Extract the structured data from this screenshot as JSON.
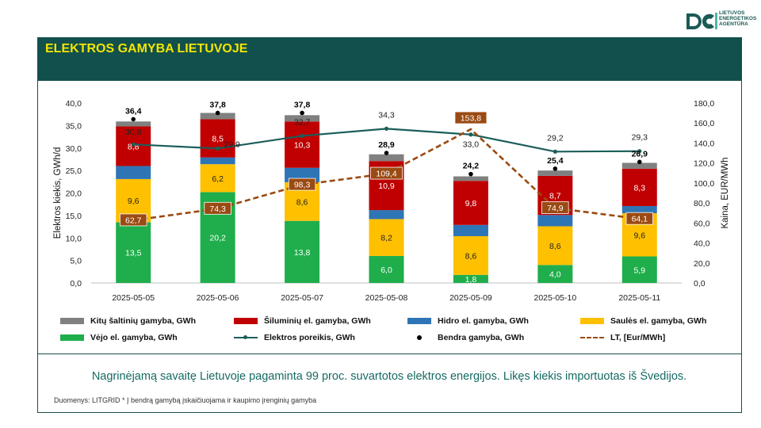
{
  "header": {
    "logo_text": "LIETUVOS\nENERGETIKOS\nAGENTŪRA",
    "title": "ELEKTROS GAMYBA LIETUVOJE"
  },
  "chart_data": {
    "type": "bar",
    "categories": [
      "2025-05-05",
      "2025-05-06",
      "2025-05-07",
      "2025-05-08",
      "2025-05-09",
      "2025-05-10",
      "2025-05-11"
    ],
    "ylabel_left": "Elektros kiekis, GWh/d",
    "ylabel_right": "Kaina, EUR/MWh",
    "ylim_left": [
      0,
      40
    ],
    "ylim_right": [
      0,
      180
    ],
    "yticks_left": [
      "0,0",
      "5,0",
      "10,0",
      "15,0",
      "20,0",
      "25,0",
      "30,0",
      "35,0",
      "40,0"
    ],
    "yticks_right": [
      "0,0",
      "20,0",
      "40,0",
      "60,0",
      "80,0",
      "100,0",
      "120,0",
      "140,0",
      "160,0",
      "180,0"
    ],
    "stacks": [
      {
        "name": "Vėjo el. gamyba, GWh",
        "color": "#1fae4b",
        "values": [
          13.5,
          20.2,
          13.8,
          6.0,
          1.8,
          4.0,
          5.9
        ],
        "labels": [
          "13,5",
          "20,2",
          "13,8",
          "6,0",
          "1,8",
          "4,0",
          "5,9"
        ]
      },
      {
        "name": "Saulės el. gamyba, GWh",
        "color": "#ffc000",
        "values": [
          9.6,
          6.2,
          8.6,
          8.2,
          8.6,
          8.6,
          9.6
        ],
        "labels": [
          "9,6",
          "6,2",
          "8,6",
          "8,2",
          "8,6",
          "8,6",
          "9,6"
        ]
      },
      {
        "name": "Hidro el. gamyba, GWh",
        "color": "#2e75b6",
        "values": [
          2.9,
          1.5,
          3.2,
          2.0,
          2.5,
          2.5,
          1.6
        ],
        "labels": [
          "",
          "",
          "",
          "",
          "",
          "",
          ""
        ]
      },
      {
        "name": "Šiluminių el. gamyba, GWh",
        "color": "#c00000",
        "values": [
          8.8,
          8.5,
          10.3,
          10.9,
          9.8,
          8.7,
          8.3
        ],
        "labels": [
          "8,8",
          "8,5",
          "10,3",
          "10,9",
          "9,8",
          "8,7",
          "8,3"
        ]
      },
      {
        "name": "Kitų šaltinių gamyba,  GWh",
        "color": "#808080",
        "values": [
          1.1,
          1.4,
          1.4,
          1.5,
          1.0,
          1.2,
          1.3
        ],
        "labels": [
          "",
          "",
          "",
          "",
          "",
          "",
          ""
        ]
      }
    ],
    "total": {
      "name": "Bendra gamyba, GWh",
      "values": [
        36.4,
        37.8,
        37.8,
        28.9,
        24.2,
        25.4,
        26.9
      ],
      "labels": [
        "36,4",
        "37,8",
        "37,8",
        "28,9",
        "24,2",
        "25,4",
        "26,9"
      ]
    },
    "demand": {
      "name": "Elektros poreikis, GWh",
      "color": "#1b5e5a",
      "values": [
        30.8,
        29.9,
        32.7,
        34.3,
        33.0,
        29.2,
        29.3
      ],
      "labels": [
        "30,8",
        "29,9",
        "32,7",
        "34,3",
        "33,0",
        "29,2",
        "29,3"
      ]
    },
    "price": {
      "name": "LT, [Eur/MWh]",
      "color": "#9a4a12",
      "values": [
        62.7,
        74.3,
        98.3,
        109.4,
        153.8,
        74.9,
        64.1
      ],
      "labels": [
        "62,7",
        "74,3",
        "98,3",
        "109,4",
        "153,8",
        "74,9",
        "64,1"
      ]
    }
  },
  "legend": {
    "other": "Kitų šaltinių gamyba,  GWh",
    "thermal": "Šiluminių el. gamyba, GWh",
    "hydro": "Hidro el. gamyba, GWh",
    "solar": "Saulės el. gamyba, GWh",
    "wind": "Vėjo el. gamyba, GWh",
    "demand": "Elektros poreikis, GWh",
    "total": "Bendra gamyba, GWh",
    "price": "LT, [Eur/MWh]"
  },
  "colors": {
    "band": "#12504d",
    "title": "#f2e500",
    "wind": "#1fae4b",
    "solar": "#ffc000",
    "hydro": "#2e75b6",
    "thermal": "#c00000",
    "other": "#808080",
    "demand": "#1b5e5a",
    "price": "#9a4a12"
  },
  "footer": {
    "summary": "Nagrinėjamą savaitę Lietuvoje pagaminta 99 proc. suvartotos elektros energijos. Likęs kiekis importuotas iš Švedijos.",
    "source": "Duomenys: LITGRID  * Į bendrą gamybą įskaičiuojama ir kaupimo įrenginių gamyba"
  }
}
